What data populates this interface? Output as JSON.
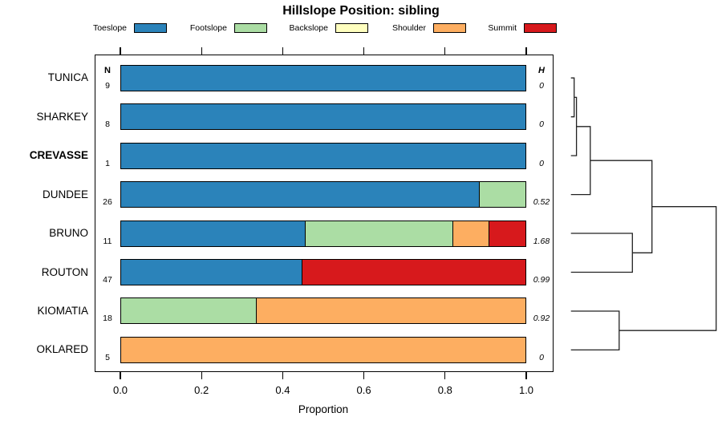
{
  "title": "Hillslope Position: sibling",
  "table_headers": {
    "n": "N",
    "h": "H"
  },
  "x_axis": {
    "label": "Proportion",
    "ticks": [
      "0.0",
      "0.2",
      "0.4",
      "0.6",
      "0.8",
      "1.0"
    ],
    "range": [
      0,
      1
    ]
  },
  "legend": {
    "position": "top",
    "items": [
      {
        "label": "Toeslope",
        "color": "#2b83ba"
      },
      {
        "label": "Footslope",
        "color": "#abdda4"
      },
      {
        "label": "Backslope",
        "color": "#ffffbf"
      },
      {
        "label": "Shoulder",
        "color": "#fdae61"
      },
      {
        "label": "Summit",
        "color": "#d7191c"
      }
    ]
  },
  "chart_data": {
    "type": "bar",
    "stacked": true,
    "orientation": "horizontal",
    "title": "Hillslope Position: sibling",
    "xlabel": "Proportion",
    "xlim": [
      0,
      1
    ],
    "grid": false,
    "categories": [
      "Toeslope",
      "Footslope",
      "Backslope",
      "Shoulder",
      "Summit"
    ],
    "colors": {
      "Toeslope": "#2b83ba",
      "Footslope": "#abdda4",
      "Backslope": "#ffffbf",
      "Shoulder": "#fdae61",
      "Summit": "#d7191c"
    },
    "rows": [
      {
        "name": "TUNICA",
        "n": "9",
        "shannon_h": "0",
        "emphasis": false,
        "segments": [
          {
            "category": "Toeslope",
            "value": 1.0
          }
        ]
      },
      {
        "name": "SHARKEY",
        "n": "8",
        "shannon_h": "0",
        "emphasis": false,
        "segments": [
          {
            "category": "Toeslope",
            "value": 1.0
          }
        ]
      },
      {
        "name": "CREVASSE",
        "n": "1",
        "shannon_h": "0",
        "emphasis": true,
        "segments": [
          {
            "category": "Toeslope",
            "value": 1.0
          }
        ]
      },
      {
        "name": "DUNDEE",
        "n": "26",
        "shannon_h": "0.52",
        "emphasis": false,
        "segments": [
          {
            "category": "Toeslope",
            "value": 0.885
          },
          {
            "category": "Footslope",
            "value": 0.115
          }
        ]
      },
      {
        "name": "BRUNO",
        "n": "11",
        "shannon_h": "1.68",
        "emphasis": false,
        "segments": [
          {
            "category": "Toeslope",
            "value": 0.455
          },
          {
            "category": "Footslope",
            "value": 0.364
          },
          {
            "category": "Shoulder",
            "value": 0.0905
          },
          {
            "category": "Summit",
            "value": 0.0905
          }
        ]
      },
      {
        "name": "ROUTON",
        "n": "47",
        "shannon_h": "0.99",
        "emphasis": false,
        "segments": [
          {
            "category": "Toeslope",
            "value": 0.447
          },
          {
            "category": "Summit",
            "value": 0.553
          }
        ]
      },
      {
        "name": "KIOMATIA",
        "n": "18",
        "shannon_h": "0.92",
        "emphasis": false,
        "segments": [
          {
            "category": "Footslope",
            "value": 0.333
          },
          {
            "category": "Shoulder",
            "value": 0.667
          }
        ]
      },
      {
        "name": "OKLARED",
        "n": "5",
        "shannon_h": "0",
        "emphasis": false,
        "segments": [
          {
            "category": "Shoulder",
            "value": 1.0
          }
        ]
      }
    ]
  },
  "dendrogram": {
    "leaf_order": [
      "TUNICA",
      "SHARKEY",
      "CREVASSE",
      "DUNDEE",
      "BRUNO",
      "ROUTON",
      "KIOMATIA",
      "OKLARED"
    ],
    "merges": [
      {
        "id": "m1",
        "children": [
          "TUNICA",
          "SHARKEY"
        ],
        "height": 0.022
      },
      {
        "id": "m2",
        "children": [
          "m1",
          "CREVASSE"
        ],
        "height": 0.038
      },
      {
        "id": "m3",
        "children": [
          "m2",
          "DUNDEE"
        ],
        "height": 0.133
      },
      {
        "id": "m4",
        "children": [
          "BRUNO",
          "ROUTON"
        ],
        "height": 0.423
      },
      {
        "id": "m5",
        "children": [
          "m3",
          "m4"
        ],
        "height": 0.558
      },
      {
        "id": "m6",
        "children": [
          "KIOMATIA",
          "OKLARED"
        ],
        "height": 0.332
      },
      {
        "id": "m7",
        "children": [
          "m5",
          "m6"
        ],
        "height": 1.0
      }
    ]
  }
}
